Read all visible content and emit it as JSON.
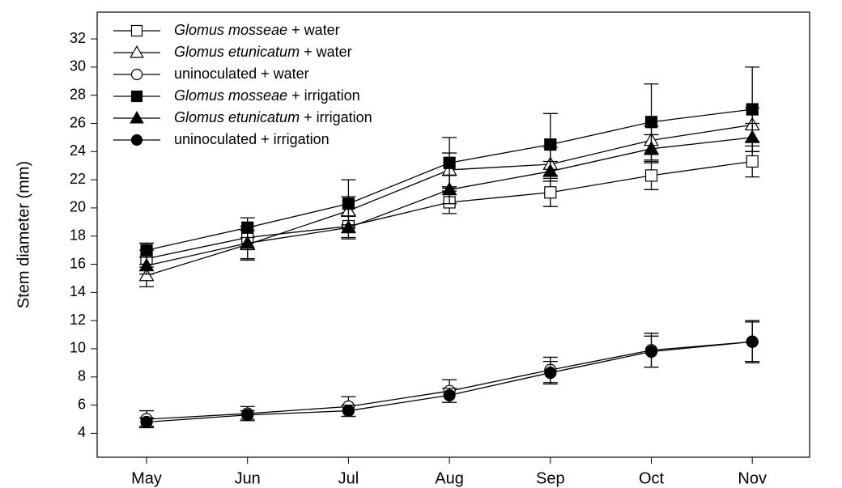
{
  "chart_data": {
    "type": "line",
    "y_label": "Stem diameter (mm)",
    "categories": [
      "May",
      "Jun",
      "Jul",
      "Aug",
      "Sep",
      "Oct",
      "Nov"
    ],
    "ylim": [
      2.3,
      33.9
    ],
    "yticks": [
      4,
      6,
      8,
      10,
      12,
      14,
      16,
      18,
      20,
      22,
      24,
      26,
      28,
      30,
      32
    ],
    "series": [
      {
        "name": "Glomus mosseae + water",
        "italic_words": 2,
        "marker": "square",
        "color": "#000000",
        "filled": false,
        "values": [
          16.4,
          17.9,
          18.7,
          20.4,
          21.1,
          22.3,
          23.3
        ],
        "errors": [
          0.6,
          0.8,
          0.8,
          0.8,
          1.0,
          1.0,
          1.1
        ]
      },
      {
        "name": "Glomus etunicatum + water",
        "italic_words": 2,
        "marker": "triangle",
        "color": "#000000",
        "filled": false,
        "values": [
          15.2,
          17.4,
          19.8,
          22.7,
          23.1,
          24.8,
          25.9
        ],
        "errors": [
          0.8,
          1.0,
          1.0,
          1.2,
          1.2,
          1.0,
          1.2
        ]
      },
      {
        "name": "uninoculated + water",
        "italic_words": 0,
        "marker": "circle",
        "color": "#000000",
        "filled": false,
        "values": [
          5.0,
          5.4,
          5.9,
          7.0,
          8.5,
          9.9,
          10.5
        ],
        "errors": [
          0.6,
          0.5,
          0.7,
          0.8,
          0.9,
          1.2,
          1.5
        ]
      },
      {
        "name": "Glomus mosseae + irrigation",
        "italic_words": 2,
        "marker": "square",
        "color": "#000000",
        "filled": true,
        "values": [
          17.0,
          18.6,
          20.3,
          23.2,
          24.5,
          26.1,
          27.0
        ],
        "errors": [
          0.5,
          0.7,
          1.7,
          1.8,
          2.2,
          2.7,
          3.0
        ]
      },
      {
        "name": "Glomus etunicatum + irrigation",
        "italic_words": 2,
        "marker": "triangle",
        "color": "#000000",
        "filled": true,
        "values": [
          15.9,
          17.5,
          18.6,
          21.3,
          22.6,
          24.2,
          25.0
        ],
        "errors": [
          0.6,
          1.2,
          0.8,
          1.0,
          0.7,
          1.0,
          1.0
        ]
      },
      {
        "name": "uninoculated + irrigation",
        "italic_words": 0,
        "marker": "circle",
        "color": "#000000",
        "filled": true,
        "values": [
          4.8,
          5.3,
          5.6,
          6.7,
          8.3,
          9.8,
          10.5
        ],
        "errors": [
          0.3,
          0.3,
          0.4,
          0.5,
          0.8,
          1.1,
          1.4
        ]
      }
    ]
  }
}
